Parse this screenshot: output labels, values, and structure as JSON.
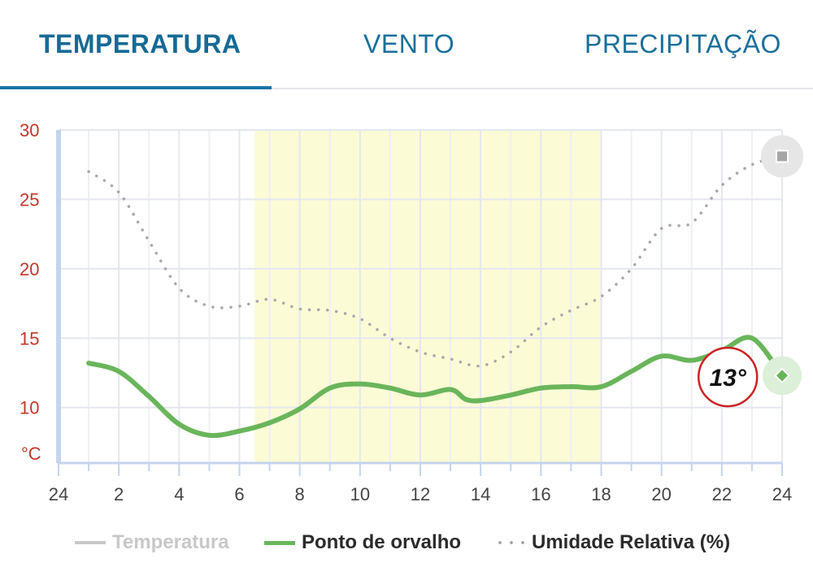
{
  "tabs": [
    {
      "label": "TEMPERATURA",
      "active": true
    },
    {
      "label": "VENTO",
      "active": false
    },
    {
      "label": "PRECIPITAÇÃO",
      "active": false
    }
  ],
  "colors": {
    "accent": "#1b73a3",
    "dew_point": "#6ab55b",
    "humidity": "#a8a8a8",
    "temperature_disabled": "#c8c8c8",
    "y_ticks": "#c0392b",
    "daylight": "#fbfbd6",
    "marker_ring": "#cc2222"
  },
  "chart_data": {
    "type": "line",
    "xlim": [
      0,
      24
    ],
    "ylim": [
      6,
      30
    ],
    "x_tick_labels": [
      "24",
      "2",
      "4",
      "6",
      "8",
      "10",
      "12",
      "14",
      "16",
      "18",
      "20",
      "22",
      "24"
    ],
    "x_tick_values": [
      0,
      2,
      4,
      6,
      8,
      10,
      12,
      14,
      16,
      18,
      20,
      22,
      24
    ],
    "y_tick_labels": [
      "30",
      "25",
      "20",
      "15",
      "10"
    ],
    "y_tick_values": [
      30,
      25,
      20,
      15,
      10
    ],
    "y_unit": "°C",
    "grid": true,
    "daylight_range": [
      6.5,
      18
    ],
    "legend_position": "bottom",
    "series": [
      {
        "name": "Temperatura",
        "style": "solid",
        "visible": false,
        "values": []
      },
      {
        "name": "Ponto de orvalho",
        "style": "solid",
        "visible": true,
        "x": [
          1,
          2,
          3,
          4,
          5,
          6,
          7,
          8,
          9,
          10,
          11,
          12,
          13,
          13.5,
          14,
          15,
          16,
          17,
          18,
          19,
          20,
          21,
          22,
          23,
          24
        ],
        "values": [
          13.2,
          12.6,
          10.8,
          8.8,
          8.0,
          8.3,
          8.9,
          9.9,
          11.4,
          11.7,
          11.4,
          10.9,
          11.3,
          10.6,
          10.5,
          10.9,
          11.4,
          11.5,
          11.5,
          12.6,
          13.7,
          13.4,
          14.1,
          15.0,
          12.3
        ]
      },
      {
        "name": "Umidade Relativa (%)",
        "style": "dotted",
        "visible": true,
        "x": [
          1,
          2,
          3,
          4,
          5,
          6,
          7,
          8,
          9,
          10,
          11,
          12,
          13,
          14,
          15,
          16,
          17,
          18,
          19,
          20,
          21,
          22,
          23,
          24
        ],
        "values": [
          27.0,
          25.5,
          22.0,
          18.6,
          17.3,
          17.3,
          17.8,
          17.1,
          17.0,
          16.4,
          15.0,
          14.0,
          13.5,
          13.0,
          14.0,
          15.8,
          17.0,
          18.0,
          20.0,
          22.9,
          23.3,
          26.0,
          27.5,
          28.1
        ]
      }
    ],
    "annotation": {
      "label": "13°",
      "x": 22.2,
      "y": 12.2
    }
  }
}
